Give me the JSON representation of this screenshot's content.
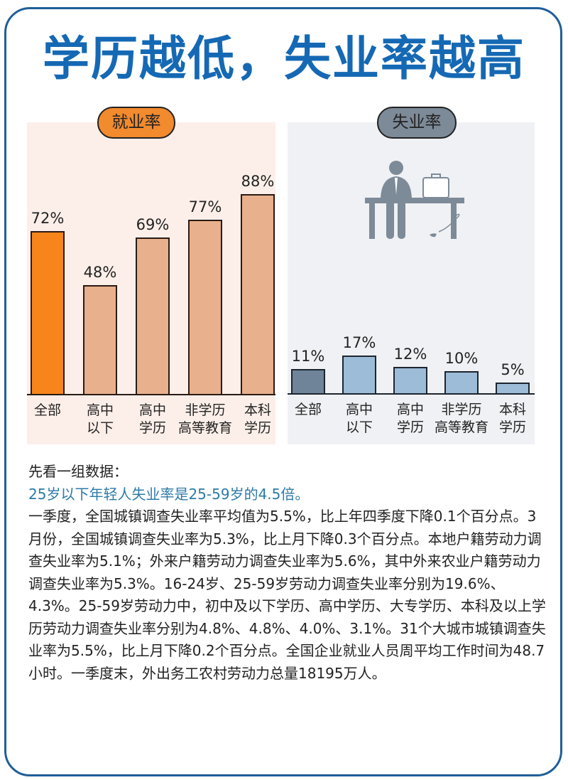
{
  "title": "学历越低，失业率越高",
  "colors": {
    "title": "#1569b4",
    "frame_border": "#1f5f99",
    "employment_main_bar": "#f7851b",
    "employment_bar": "#e8b08c",
    "employment_panel_bg": "#fcefe9",
    "unemployment_main_bar": "#6f8499",
    "unemployment_bar": "#9dbcd8",
    "unemployment_panel_bg": "#f0f1f4",
    "highlight_text": "#2b7aa8"
  },
  "employment": {
    "label": "就业率",
    "bars": [
      {
        "category": "全部",
        "value_label": "72%"
      },
      {
        "category": "高中\n以下",
        "value_label": "48%"
      },
      {
        "category": "高中\n学历",
        "value_label": "69%"
      },
      {
        "category": "非学历\n高等教育",
        "value_label": "77%"
      },
      {
        "category": "本科\n学历",
        "value_label": "88%"
      }
    ]
  },
  "unemployment": {
    "label": "失业率",
    "illustration": "sad-man-on-bench-icon",
    "bars": [
      {
        "category": "全部",
        "value_label": "11%"
      },
      {
        "category": "高中\n以下",
        "value_label": "17%"
      },
      {
        "category": "高中\n学历",
        "value_label": "12%"
      },
      {
        "category": "非学历\n高等教育",
        "value_label": "10%"
      },
      {
        "category": "本科\n学历",
        "value_label": "5%"
      }
    ]
  },
  "article": {
    "intro": "先看一组数据：",
    "highlight": "25岁以下年轻人失业率是25-59岁的4.5倍。",
    "body": "一季度，全国城镇调查失业率平均值为5.5%，比上年四季度下降0.1个百分点。3月份，全国城镇调查失业率为5.3%，比上月下降0.3个百分点。本地户籍劳动力调查失业率为5.1%；外来户籍劳动力调查失业率为5.6%，其中外来农业户籍劳动力调查失业率为5.3%。16-24岁、25-59岁劳动力调查失业率分别为19.6%、4.3%。25-59岁劳动力中，初中及以下学历、高中学历、大专学历、本科及以上学历劳动力调查失业率分别为4.8%、4.8%、4.0%、3.1%。31个大城市城镇调查失业率为5.5%，比上月下降0.2个百分点。全国企业就业人员周平均工作时间为48.7小时。一季度末，外出务工农村劳动力总量18195万人。"
  },
  "chart_data": [
    {
      "type": "bar",
      "title": "就业率",
      "categories": [
        "全部",
        "高中以下",
        "高中学历",
        "非学历高等教育",
        "本科学历"
      ],
      "values": [
        72,
        48,
        69,
        77,
        88
      ],
      "unit": "%",
      "xlabel": "",
      "ylabel": "",
      "ylim": [
        0,
        100
      ],
      "grid": false,
      "highlight_index": 0
    },
    {
      "type": "bar",
      "title": "失业率",
      "categories": [
        "全部",
        "高中以下",
        "高中学历",
        "非学历高等教育",
        "本科学历"
      ],
      "values": [
        11,
        17,
        12,
        10,
        5
      ],
      "unit": "%",
      "xlabel": "",
      "ylabel": "",
      "ylim": [
        0,
        100
      ],
      "grid": false,
      "highlight_index": 0
    }
  ]
}
